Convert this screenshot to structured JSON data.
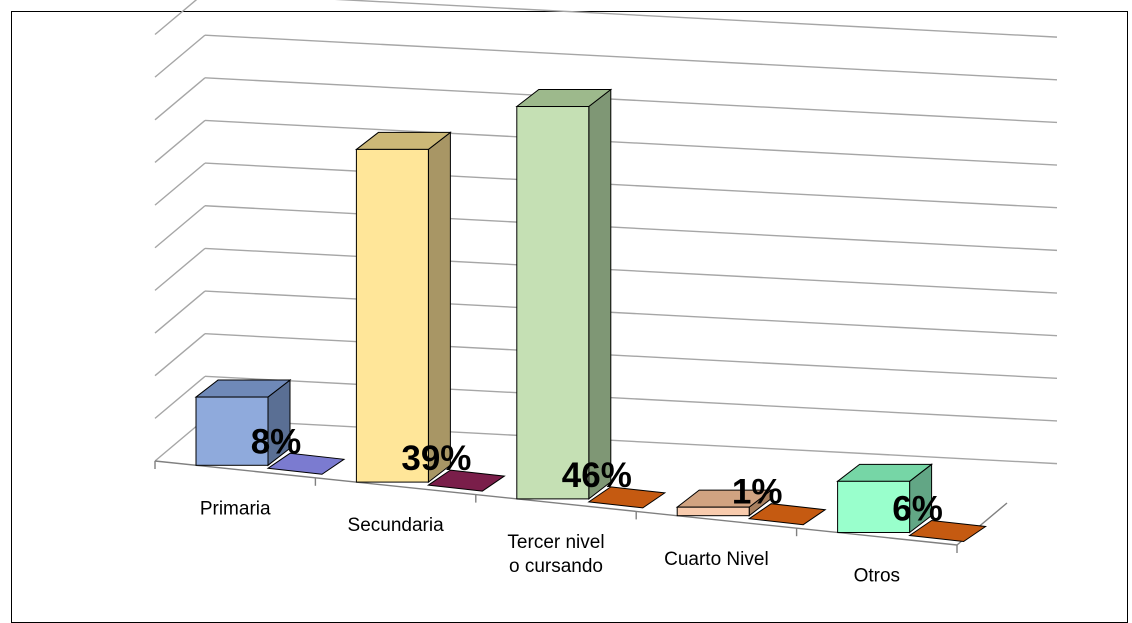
{
  "chart_data": {
    "type": "bar",
    "categories": [
      [
        "Primaria"
      ],
      [
        "Secundaria"
      ],
      [
        "Tercer nivel",
        "o cursando"
      ],
      [
        "Cuarto Nivel"
      ],
      [
        "Otros"
      ]
    ],
    "values": [
      8,
      39,
      46,
      1,
      6
    ],
    "data_labels": [
      "8%",
      "39%",
      "46%",
      "1%",
      "6%"
    ],
    "ylim": [
      0,
      50
    ],
    "grid": true,
    "legend": "none",
    "colors": {
      "front": [
        "#8faadc",
        "#ffe699",
        "#c5e0b4",
        "#f8cbad",
        "#99ffcc"
      ],
      "side": [
        "#5a6f94",
        "#a89665",
        "#7f9775",
        "#a9805f",
        "#62a685"
      ],
      "top": [
        "#6f89b8",
        "#ccb877",
        "#9db98c",
        "#d1a381",
        "#76d6a6"
      ],
      "shadow": [
        "#7b7bd0",
        "#7a1e4a",
        "#c55a11",
        "#c55a11",
        "#c55a11"
      ],
      "grid": "#a6a6a6",
      "floor": "#808080"
    }
  }
}
